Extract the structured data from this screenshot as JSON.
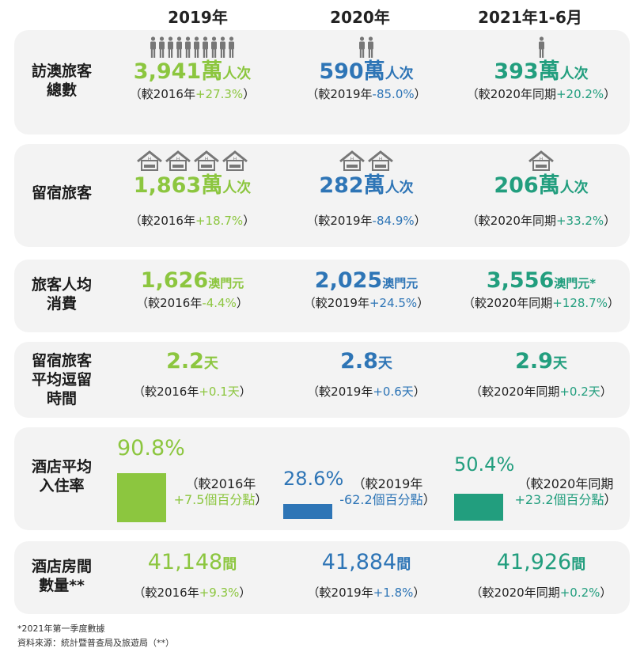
{
  "headers": [
    "2019年",
    "2020年",
    "2021年1-6月"
  ],
  "colors": {
    "c2019": "#8cc63f",
    "c2020": "#2e75b6",
    "c2021": "#229e7e",
    "panel": "#f3f3f3"
  },
  "rows": {
    "visitors": {
      "label": [
        "訪澳旅客",
        "總數"
      ],
      "icon": "person-icon",
      "cells": [
        {
          "value": "3,941萬",
          "unit": "人次",
          "open": "（較2016年",
          "chg": "+27.3%",
          "close": "）"
        },
        {
          "value": "590萬",
          "unit": "人次",
          "open": "（較2019年",
          "chg": "-85.0%",
          "close": "）"
        },
        {
          "value": "393萬",
          "unit": "人次",
          "open": "（較2020年同期",
          "chg": "+20.2%",
          "close": "）"
        }
      ]
    },
    "overnight": {
      "label": [
        "留宿旅客"
      ],
      "icon": "hotel-icon",
      "cells": [
        {
          "value": "1,863萬",
          "unit": "人次",
          "open": "（較2016年",
          "chg": "+18.7%",
          "close": "）"
        },
        {
          "value": "282萬",
          "unit": "人次",
          "open": "（較2019年",
          "chg": "-84.9%",
          "close": "）"
        },
        {
          "value": "206萬",
          "unit": "人次",
          "open": "（較2020年同期",
          "chg": "+33.2%",
          "close": "）"
        }
      ]
    },
    "spending": {
      "label": [
        "旅客人均",
        "消費"
      ],
      "cells": [
        {
          "value": "1,626",
          "unit": "澳門元",
          "open": "（較2016年",
          "chg": "-4.4%",
          "close": "）"
        },
        {
          "value": "2,025",
          "unit": "澳門元",
          "open": "（較2019年",
          "chg": "+24.5%",
          "close": "）"
        },
        {
          "value": "3,556",
          "unit": "澳門元*",
          "open": "（較2020年同期",
          "chg": "+128.7%",
          "close": "）"
        }
      ]
    },
    "stay": {
      "label": [
        "留宿旅客",
        "平均逗留",
        "時間"
      ],
      "cells": [
        {
          "value": "2.2",
          "unit": "天",
          "open": "（較2016年",
          "chg": "+0.1天",
          "close": "）"
        },
        {
          "value": "2.8",
          "unit": "天",
          "open": "（較2019年",
          "chg": "+0.6天",
          "close": "）"
        },
        {
          "value": "2.9",
          "unit": "天",
          "open": "（較2020年同期",
          "chg": "+0.2天",
          "close": "）"
        }
      ]
    },
    "occupancy": {
      "label": [
        "酒店平均",
        "入住率"
      ],
      "cells": [
        {
          "value": "90.8%",
          "rate": 90.8,
          "open": "（較2016年",
          "chg": "+7.5個百分點",
          "close": "）"
        },
        {
          "value": "28.6%",
          "rate": 28.6,
          "open": "（較2019年",
          "chg": "-62.2個百分點",
          "close": "）"
        },
        {
          "value": "50.4%",
          "rate": 50.4,
          "open": "（較2020年同期",
          "chg": "+23.2個百分點",
          "close": "）"
        }
      ]
    },
    "rooms": {
      "label": [
        "酒店房間",
        "數量**"
      ],
      "cells": [
        {
          "value": "41,148",
          "unit": "間",
          "open": "（較2016年",
          "chg": "+9.3%",
          "close": "）"
        },
        {
          "value": "41,884",
          "unit": "間",
          "open": "（較2019年",
          "chg": "+1.8%",
          "close": "）"
        },
        {
          "value": "41,926",
          "unit": "間",
          "open": "（較2020年同期",
          "chg": "+0.2%",
          "close": "）"
        }
      ]
    }
  },
  "icon_counts": {
    "visitors": [
      10,
      2,
      1
    ],
    "overnight": [
      4,
      2,
      1
    ]
  },
  "footnotes": [
    "*2021年第一季度數據",
    "資料來源：統計暨普查局及旅遊局（**）"
  ]
}
